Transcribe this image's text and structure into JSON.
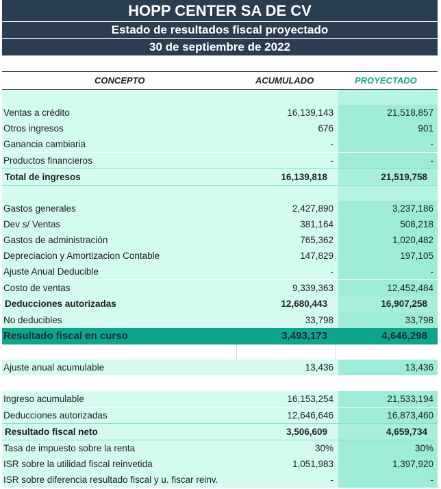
{
  "header": {
    "company": "HOPP CENTER SA DE CV",
    "report_title": "Estado de resultados fiscal proyectado",
    "date": "30 de septiembre de 2022"
  },
  "columns": {
    "concept": "CONCEPTO",
    "accumulated": "ACUMULADO",
    "projected": "PROYECTADO"
  },
  "colors": {
    "header_bg": "#2b3d51",
    "row_bg": "#d4fbef",
    "projected_bg": "#9eecd8",
    "highlight_bg": "#0fa58c",
    "projected_header_text": "#19a68c"
  },
  "rows": [
    {
      "label": "Ventas a crédito",
      "acc": "16,139,143",
      "proy": "21,518,857"
    },
    {
      "label": "Otros ingresos",
      "acc": "676",
      "proy": "901"
    },
    {
      "label": "Ganancia cambiaria",
      "acc": "-",
      "proy": "-"
    },
    {
      "label": "Productos financieros",
      "acc": "-",
      "proy": "-"
    },
    {
      "label": "Total de ingresos",
      "acc": "16,139,818",
      "proy": "21,519,758"
    },
    {
      "label": "Gastos generales",
      "acc": "2,427,890",
      "proy": "3,237,186"
    },
    {
      "label": "Dev s/ Ventas",
      "acc": "381,164",
      "proy": "508,218"
    },
    {
      "label": "Gastos de administración",
      "acc": "765,362",
      "proy": "1,020,482"
    },
    {
      "label": "Depreciacion y Amortizacion Contable",
      "acc": "147,829",
      "proy": "197,105"
    },
    {
      "label": "Ajuste Anual Deducible",
      "acc": "-",
      "proy": "-"
    },
    {
      "label": "Costo de ventas",
      "acc": "9,339,363",
      "proy": "12,452,484"
    },
    {
      "label": "Deducciones autorizadas",
      "acc": "12,680,443",
      "proy": "16,907,258"
    },
    {
      "label": "No deducibles",
      "acc": "33,798",
      "proy": "33,798"
    },
    {
      "label": "Resultado fiscal en curso",
      "acc": "3,493,173",
      "proy": "4,646,298"
    },
    {
      "label": "Ajuste anual acumulable",
      "acc": "13,436",
      "proy": "13,436"
    },
    {
      "label": "Ingreso acumulable",
      "acc": "16,153,254",
      "proy": "21,533,194"
    },
    {
      "label": "Deducciones autorizadas",
      "acc": "12,646,646",
      "proy": "16,873,460"
    },
    {
      "label": "Resultado fiscal neto",
      "acc": "3,506,609",
      "proy": "4,659,734"
    },
    {
      "label": "Tasa de impuesto sobre la renta",
      "acc": "30%",
      "proy": "30%"
    },
    {
      "label": "ISR sobre la utilidad fiscal reinvetida",
      "acc": "1,051,983",
      "proy": "1,397,920"
    },
    {
      "label": "ISR sobre diferencia resultado fiscal y u. fiscar reinv.",
      "acc": "-",
      "proy": "-"
    }
  ]
}
